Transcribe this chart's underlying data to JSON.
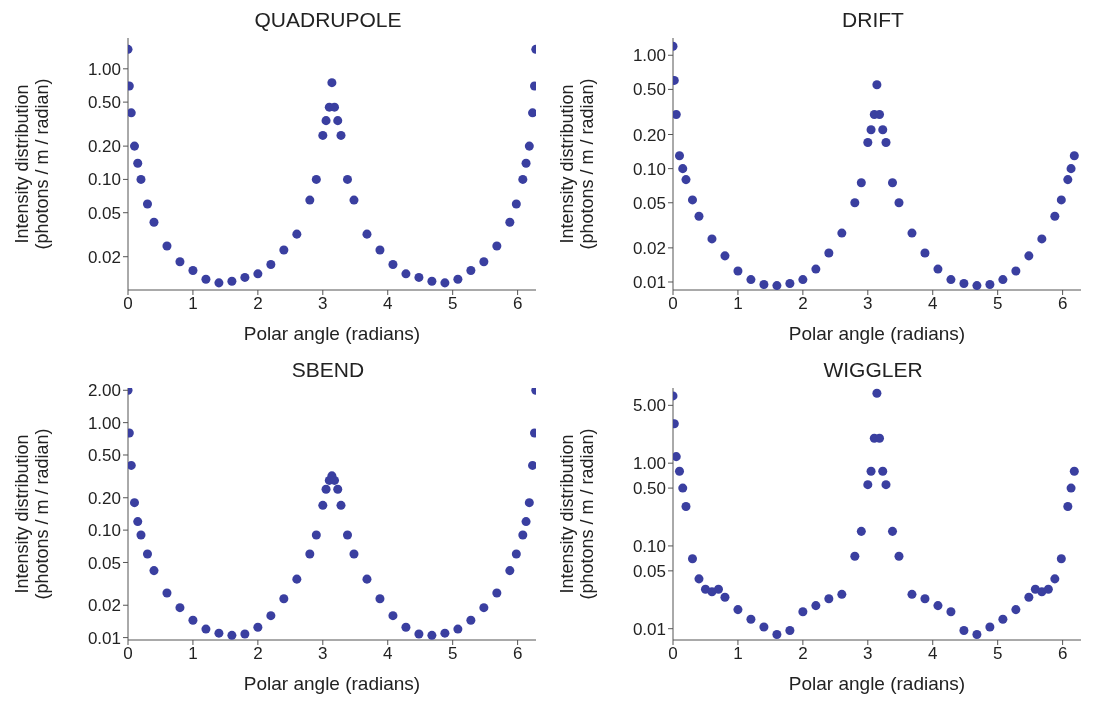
{
  "chart_data": [
    {
      "type": "scatter",
      "title": "QUADRUPOLE",
      "xlabel": "Polar angle (radians)",
      "ylabel": "Intensity distribution\n(photons / m / radian)",
      "log": "y",
      "marker": "circle",
      "color": "#3a3fa0",
      "x": [
        0,
        0.02,
        0.05,
        0.1,
        0.15,
        0.2,
        0.3,
        0.4,
        0.6,
        0.8,
        1.0,
        1.2,
        1.4,
        1.6,
        1.8,
        2.0,
        2.2,
        2.4,
        2.6,
        2.8,
        2.9,
        3.0,
        3.05,
        3.1,
        3.14,
        3.18,
        3.23,
        3.28,
        3.38,
        3.48,
        3.68,
        3.88,
        4.08,
        4.28,
        4.48,
        4.68,
        4.88,
        5.08,
        5.28,
        5.48,
        5.68,
        5.88,
        5.98,
        6.08,
        6.13,
        6.18,
        6.23,
        6.26,
        6.28
      ],
      "values": [
        1.5,
        0.7,
        0.4,
        0.2,
        0.14,
        0.1,
        0.06,
        0.041,
        0.025,
        0.018,
        0.015,
        0.0125,
        0.0116,
        0.012,
        0.013,
        0.014,
        0.017,
        0.023,
        0.032,
        0.065,
        0.1,
        0.25,
        0.34,
        0.45,
        0.75,
        0.45,
        0.34,
        0.25,
        0.1,
        0.065,
        0.032,
        0.023,
        0.017,
        0.014,
        0.013,
        0.012,
        0.0116,
        0.0125,
        0.015,
        0.018,
        0.025,
        0.041,
        0.06,
        0.1,
        0.14,
        0.2,
        0.4,
        0.7,
        1.5
      ],
      "xlim": [
        0,
        6.283
      ],
      "xticks": [
        0,
        1,
        2,
        3,
        4,
        5,
        6
      ],
      "ylim": [
        0.01,
        1.9
      ],
      "yticks": [
        {
          "value": 0.02,
          "label": "0.02"
        },
        {
          "value": 0.05,
          "label": "0.05"
        },
        {
          "value": 0.1,
          "label": "0.10"
        },
        {
          "value": 0.2,
          "label": "0.20"
        },
        {
          "value": 0.5,
          "label": "0.50"
        },
        {
          "value": 1,
          "label": "1.00"
        }
      ]
    },
    {
      "type": "scatter",
      "title": "DRIFT",
      "xlabel": "Polar angle (radians)",
      "ylabel": "Intensity distribution\n(photons / m / radian)",
      "log": "y",
      "marker": "circle",
      "color": "#3a3fa0",
      "x": [
        0,
        0.02,
        0.05,
        0.1,
        0.15,
        0.2,
        0.3,
        0.4,
        0.6,
        0.8,
        1.0,
        1.2,
        1.4,
        1.6,
        1.8,
        2.0,
        2.2,
        2.4,
        2.6,
        2.8,
        2.9,
        3.0,
        3.05,
        3.1,
        3.14,
        3.18,
        3.23,
        3.28,
        3.38,
        3.48,
        3.68,
        3.88,
        4.08,
        4.28,
        4.48,
        4.68,
        4.88,
        5.08,
        5.28,
        5.48,
        5.68,
        5.88,
        5.98,
        6.08,
        6.13,
        6.18
      ],
      "values": [
        1.2,
        0.6,
        0.3,
        0.13,
        0.1,
        0.08,
        0.053,
        0.038,
        0.024,
        0.017,
        0.0125,
        0.0105,
        0.0095,
        0.0093,
        0.0097,
        0.0105,
        0.013,
        0.018,
        0.027,
        0.05,
        0.075,
        0.17,
        0.22,
        0.3,
        0.55,
        0.3,
        0.22,
        0.17,
        0.075,
        0.05,
        0.027,
        0.018,
        0.013,
        0.0105,
        0.0097,
        0.0093,
        0.0095,
        0.0105,
        0.0125,
        0.017,
        0.024,
        0.038,
        0.053,
        0.08,
        0.1,
        0.13
      ],
      "xlim": [
        0,
        6.283
      ],
      "xticks": [
        0,
        1,
        2,
        3,
        4,
        5,
        6
      ],
      "ylim": [
        0.0085,
        1.42
      ],
      "yticks": [
        {
          "value": 0.01,
          "label": "0.01"
        },
        {
          "value": 0.02,
          "label": "0.02"
        },
        {
          "value": 0.05,
          "label": "0.05"
        },
        {
          "value": 0.1,
          "label": "0.10"
        },
        {
          "value": 0.2,
          "label": "0.20"
        },
        {
          "value": 0.5,
          "label": "0.50"
        },
        {
          "value": 1,
          "label": "1.00"
        }
      ]
    },
    {
      "type": "scatter",
      "title": "SBEND",
      "xlabel": "Polar angle (radians)",
      "ylabel": "Intensity distribution\n(photons / m / radian)",
      "log": "y",
      "marker": "circle",
      "color": "#3a3fa0",
      "x": [
        0,
        0.02,
        0.05,
        0.1,
        0.15,
        0.2,
        0.3,
        0.4,
        0.6,
        0.8,
        1.0,
        1.2,
        1.4,
        1.6,
        1.8,
        2.0,
        2.2,
        2.4,
        2.6,
        2.8,
        2.9,
        3.0,
        3.05,
        3.1,
        3.14,
        3.18,
        3.23,
        3.28,
        3.38,
        3.48,
        3.68,
        3.88,
        4.08,
        4.28,
        4.48,
        4.68,
        4.88,
        5.08,
        5.28,
        5.48,
        5.68,
        5.88,
        5.98,
        6.08,
        6.13,
        6.18,
        6.23,
        6.26,
        6.28
      ],
      "values": [
        2.0,
        0.8,
        0.4,
        0.18,
        0.12,
        0.09,
        0.06,
        0.042,
        0.026,
        0.019,
        0.0145,
        0.012,
        0.011,
        0.0105,
        0.0108,
        0.0125,
        0.016,
        0.023,
        0.035,
        0.06,
        0.09,
        0.17,
        0.24,
        0.29,
        0.32,
        0.29,
        0.24,
        0.17,
        0.09,
        0.06,
        0.035,
        0.023,
        0.016,
        0.0125,
        0.0108,
        0.0105,
        0.011,
        0.012,
        0.0145,
        0.019,
        0.026,
        0.042,
        0.06,
        0.09,
        0.12,
        0.18,
        0.4,
        0.8,
        2.0
      ],
      "xlim": [
        0,
        6.283
      ],
      "xticks": [
        0,
        1,
        2,
        3,
        4,
        5,
        6
      ],
      "ylim": [
        0.0095,
        2.1
      ],
      "yticks": [
        {
          "value": 0.01,
          "label": "0.01"
        },
        {
          "value": 0.02,
          "label": "0.02"
        },
        {
          "value": 0.05,
          "label": "0.05"
        },
        {
          "value": 0.1,
          "label": "0.10"
        },
        {
          "value": 0.2,
          "label": "0.20"
        },
        {
          "value": 0.5,
          "label": "0.50"
        },
        {
          "value": 1,
          "label": "1.00"
        },
        {
          "value": 2,
          "label": "2.00"
        }
      ]
    },
    {
      "type": "scatter",
      "title": "WIGGLER",
      "xlabel": "Polar angle (radians)",
      "ylabel": "Intensity distribution\n(photons / m / radian)",
      "log": "y",
      "marker": "circle",
      "color": "#3a3fa0",
      "x": [
        0,
        0.02,
        0.05,
        0.1,
        0.15,
        0.2,
        0.3,
        0.4,
        0.5,
        0.6,
        0.7,
        0.8,
        1.0,
        1.2,
        1.4,
        1.6,
        1.8,
        2.0,
        2.2,
        2.4,
        2.6,
        2.8,
        2.9,
        3.0,
        3.05,
        3.1,
        3.14,
        3.18,
        3.23,
        3.28,
        3.38,
        3.48,
        3.68,
        3.88,
        4.08,
        4.28,
        4.48,
        4.68,
        4.88,
        5.08,
        5.28,
        5.48,
        5.58,
        5.68,
        5.78,
        5.88,
        5.98,
        6.08,
        6.13,
        6.18
      ],
      "values": [
        6.5,
        3,
        1.2,
        0.8,
        0.5,
        0.3,
        0.07,
        0.04,
        0.03,
        0.028,
        0.03,
        0.024,
        0.017,
        0.013,
        0.0105,
        0.0085,
        0.0095,
        0.016,
        0.019,
        0.023,
        0.026,
        0.075,
        0.15,
        0.55,
        0.8,
        2,
        7,
        2,
        0.8,
        0.55,
        0.15,
        0.075,
        0.026,
        0.023,
        0.019,
        0.016,
        0.0095,
        0.0085,
        0.0105,
        0.013,
        0.017,
        0.024,
        0.03,
        0.028,
        0.03,
        0.04,
        0.07,
        0.3,
        0.5,
        0.8
      ],
      "xlim": [
        0,
        6.283
      ],
      "xticks": [
        0,
        1,
        2,
        3,
        4,
        5,
        6
      ],
      "ylim": [
        0.0073,
        8.1
      ],
      "yticks": [
        {
          "value": 0.01,
          "label": "0.01"
        },
        {
          "value": 0.05,
          "label": "0.05"
        },
        {
          "value": 0.1,
          "label": "0.10"
        },
        {
          "value": 0.5,
          "label": "0.50"
        },
        {
          "value": 1,
          "label": "1.00"
        },
        {
          "value": 5,
          "label": "5.00"
        }
      ]
    }
  ]
}
